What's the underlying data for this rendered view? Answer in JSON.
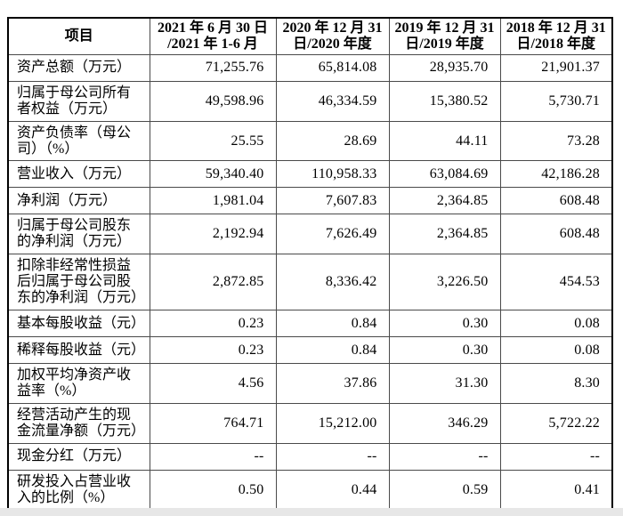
{
  "colors": {
    "page_background": "#ffffff",
    "table_outer_border": "#000000",
    "table_inner_border": "#4a4a4a",
    "text": "#000000",
    "viewer_background_strip": "#e7e7e7"
  },
  "table": {
    "columns": [
      "项目",
      "2021 年 6 月 30 日\n/2021 年 1-6 月",
      "2020 年 12 月 31\n日/2020 年度",
      "2019 年 12 月 31\n日/2019 年度",
      "2018 年 12 月 31\n日/2018 年度"
    ],
    "rows": [
      {
        "label": "资产总额（万元）",
        "values": [
          "71,255.76",
          "65,814.08",
          "28,935.70",
          "21,901.37"
        ]
      },
      {
        "label": "归属于母公司所有者权益（万元）",
        "values": [
          "49,598.96",
          "46,334.59",
          "15,380.52",
          "5,730.71"
        ]
      },
      {
        "label": "资产负债率（母公司）（%）",
        "values": [
          "25.55",
          "28.69",
          "44.11",
          "73.28"
        ]
      },
      {
        "label": "营业收入（万元）",
        "values": [
          "59,340.40",
          "110,958.33",
          "63,084.69",
          "42,186.28"
        ]
      },
      {
        "label": "净利润（万元）",
        "values": [
          "1,981.04",
          "7,607.83",
          "2,364.85",
          "608.48"
        ]
      },
      {
        "label": "归属于母公司股东的净利润（万元）",
        "values": [
          "2,192.94",
          "7,626.49",
          "2,364.85",
          "608.48"
        ]
      },
      {
        "label": "扣除非经常性损益后归属于母公司股东的净利润（万元）",
        "values": [
          "2,872.85",
          "8,336.42",
          "3,226.50",
          "454.53"
        ]
      },
      {
        "label": "基本每股收益（元）",
        "values": [
          "0.23",
          "0.84",
          "0.30",
          "0.08"
        ]
      },
      {
        "label": "稀释每股收益（元）",
        "values": [
          "0.23",
          "0.84",
          "0.30",
          "0.08"
        ]
      },
      {
        "label": "加权平均净资产收益率（%）",
        "values": [
          "4.56",
          "37.86",
          "31.30",
          "8.30"
        ]
      },
      {
        "label": "经营活动产生的现金流量净额（万元）",
        "values": [
          "764.71",
          "15,212.00",
          "346.29",
          "5,722.22"
        ]
      },
      {
        "label": "现金分红（万元）",
        "values": [
          "--",
          "--",
          "--",
          "--"
        ]
      },
      {
        "label": "研发投入占营业收入的比例（%）",
        "values": [
          "0.50",
          "0.44",
          "0.59",
          "0.41"
        ]
      }
    ]
  }
}
